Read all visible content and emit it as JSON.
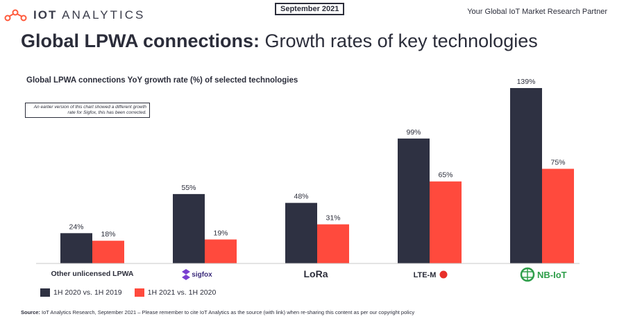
{
  "header": {
    "logo_text_bold": "IOT",
    "logo_text_rest": "ANALYTICS",
    "date_badge": "September 2021",
    "tagline": "Your Global IoT Market Research Partner"
  },
  "title": {
    "bold": "Global LPWA connections:",
    "rest": "Growth rates of key technologies"
  },
  "note": "An earlier version of this chart showed a different growth rate for Sigfox, this has been corrected.",
  "source": {
    "label": "Source:",
    "text": "IoT Analytics Research, September 2021 – Please remember to cite IoT Analytics as the source (with link) when re-sharing this content as per our copyright policy"
  },
  "colors": {
    "series1": "#2e3142",
    "series2": "#ff4a3d",
    "brand": "#ff5a3c",
    "nbiot": "#2e9e4a"
  },
  "chart_data": {
    "type": "bar",
    "title": "Global LPWA connections YoY growth rate (%) of selected technologies",
    "categories": [
      "Other unlicensed LPWA",
      "sigfox",
      "LoRa",
      "LTE-M",
      "NB-IoT"
    ],
    "series": [
      {
        "name": "1H 2020 vs. 1H 2019",
        "values": [
          24,
          55,
          48,
          99,
          139
        ],
        "labels": [
          "24%",
          "55%",
          "48%",
          "99%",
          "139%"
        ]
      },
      {
        "name": "1H 2021 vs. 1H 2020",
        "values": [
          18,
          19,
          31,
          65,
          75
        ],
        "labels": [
          "18%",
          "19%",
          "31%",
          "65%",
          "75%"
        ]
      }
    ],
    "ylim": [
      0,
      145
    ],
    "grid": false,
    "legend": "bottom-left"
  }
}
